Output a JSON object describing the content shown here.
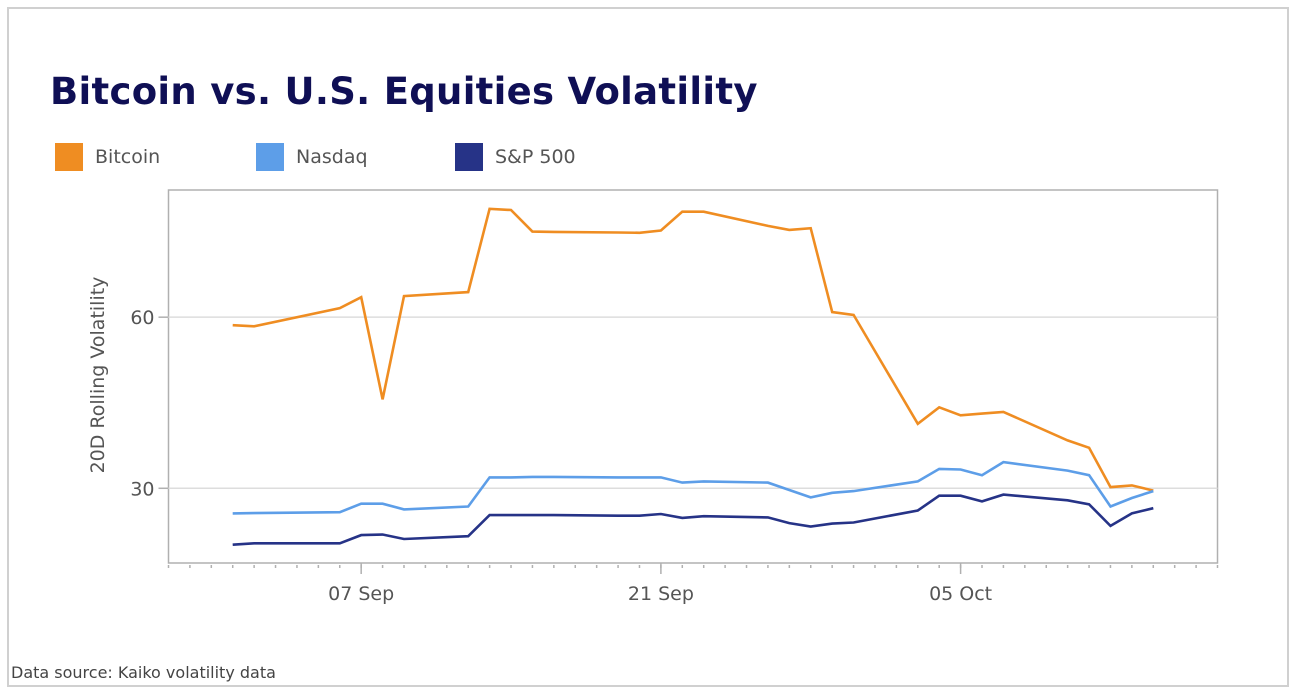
{
  "title": "Bitcoin vs. U.S. Equities Volatility",
  "source": "Data source: Kaiko volatility data",
  "chart_data": {
    "type": "line",
    "title": "Bitcoin vs. U.S. Equities Volatility",
    "ylabel": "20D Rolling Volatility",
    "xlabel": "",
    "xlim": [
      "2022-08-29",
      "2022-10-17"
    ],
    "ylim": [
      16.9,
      82.3
    ],
    "y_ticks": [
      30,
      60
    ],
    "y_tick_labels": [
      "30",
      "60"
    ],
    "x_ticks": [
      "2022-09-07",
      "2022-09-21",
      "2022-10-05"
    ],
    "x_tick_labels": [
      "07 Sep",
      "21 Sep",
      "05 Oct"
    ],
    "grid": "horizontal",
    "legend": "top-left",
    "x": [
      "2022-09-01",
      "2022-09-02",
      "2022-09-06",
      "2022-09-07",
      "2022-09-08",
      "2022-09-09",
      "2022-09-12",
      "2022-09-13",
      "2022-09-14",
      "2022-09-15",
      "2022-09-16",
      "2022-09-19",
      "2022-09-20",
      "2022-09-21",
      "2022-09-22",
      "2022-09-23",
      "2022-09-26",
      "2022-09-27",
      "2022-09-28",
      "2022-09-29",
      "2022-09-30",
      "2022-10-03",
      "2022-10-04",
      "2022-10-05",
      "2022-10-06",
      "2022-10-07",
      "2022-10-10",
      "2022-10-11",
      "2022-10-12",
      "2022-10-13",
      "2022-10-14"
    ],
    "series": [
      {
        "name": "Bitcoin",
        "color": "#ef8d22",
        "values": [
          58.6,
          58.4,
          61.6,
          63.5,
          45.6,
          63.7,
          64.4,
          79.0,
          78.8,
          75.0,
          74.95,
          74.85,
          74.8,
          75.2,
          78.5,
          78.5,
          76.0,
          75.3,
          75.6,
          60.9,
          60.4,
          41.3,
          44.2,
          42.8,
          43.1,
          43.4,
          38.4,
          37.1,
          30.2,
          30.5,
          29.6
        ]
      },
      {
        "name": "Nasdaq",
        "color": "#5d9ee8",
        "values": [
          25.6,
          25.65,
          25.8,
          27.3,
          27.3,
          26.3,
          26.8,
          31.9,
          31.9,
          32.0,
          32.0,
          31.9,
          31.9,
          31.9,
          31.0,
          31.2,
          31.0,
          29.7,
          28.4,
          29.2,
          29.5,
          31.2,
          33.4,
          33.3,
          32.3,
          34.6,
          33.1,
          32.3,
          26.8,
          28.3,
          29.5
        ]
      },
      {
        "name": "S&P 500",
        "color": "#263387",
        "values": [
          20.1,
          20.35,
          20.35,
          21.8,
          21.9,
          21.1,
          21.6,
          25.3,
          25.3,
          25.3,
          25.3,
          25.2,
          25.2,
          25.5,
          24.8,
          25.1,
          24.9,
          23.9,
          23.3,
          23.8,
          24.0,
          26.1,
          28.7,
          28.7,
          27.7,
          28.9,
          27.9,
          27.2,
          23.4,
          25.6,
          26.5
        ]
      }
    ]
  }
}
